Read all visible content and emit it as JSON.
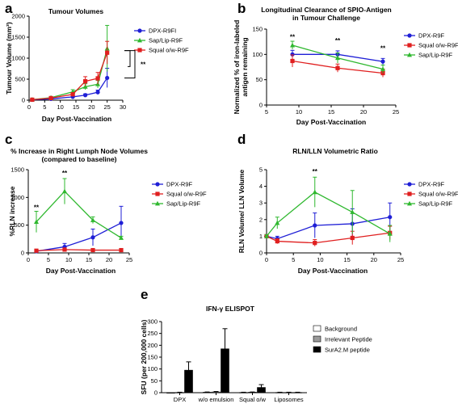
{
  "chart_data": [
    {
      "panel_label": "a",
      "type": "line",
      "title": "Tumour Volumes",
      "xlabel": "Day Post-Vaccination",
      "ylabel": "Tumour Volume (mm³)",
      "xlim": [
        0,
        30
      ],
      "ylim": [
        0,
        2000
      ],
      "xticks": [
        0,
        5,
        10,
        15,
        20,
        25,
        30
      ],
      "yticks": [
        0,
        500,
        1000,
        1500,
        2000
      ],
      "legend_position": "top-right",
      "significance": "**",
      "series": [
        {
          "name": "DPX-R9FI",
          "color": "#1f1fd6",
          "marker": "circle",
          "x": [
            1,
            7,
            14,
            18,
            22,
            25
          ],
          "y": [
            10,
            30,
            80,
            120,
            190,
            530
          ],
          "err": [
            5,
            10,
            20,
            30,
            50,
            230
          ]
        },
        {
          "name": "Sap/Lip-R9F",
          "color": "#2fb82f",
          "marker": "triangle",
          "x": [
            1,
            7,
            14,
            18,
            22,
            25
          ],
          "y": [
            15,
            60,
            200,
            320,
            380,
            1230
          ],
          "err": [
            5,
            15,
            50,
            70,
            90,
            550
          ]
        },
        {
          "name": "Squal o/w-R9F",
          "color": "#e01f1f",
          "marker": "square",
          "x": [
            1,
            7,
            14,
            18,
            22,
            25
          ],
          "y": [
            12,
            50,
            140,
            450,
            520,
            1130
          ],
          "err": [
            5,
            15,
            40,
            110,
            140,
            270
          ]
        }
      ]
    },
    {
      "panel_label": "b",
      "type": "line",
      "title": "Longitudinal Clearance of SPIO-Antigen in Tumour Challenge",
      "title_lines": [
        "Longitudinal Clearance of SPIO-Antigen",
        "in Tumour Challenge"
      ],
      "xlabel": "Day Post-Vaccination",
      "ylabel": "Normalized % of iron-labeled antigen remaining",
      "ylabel_lines": [
        "Normalized % of iron-labeled",
        "antigen remaining"
      ],
      "xlim": [
        5,
        25
      ],
      "ylim": [
        0,
        150
      ],
      "xticks": [
        5,
        10,
        15,
        20,
        25
      ],
      "yticks": [
        0,
        50,
        100,
        150
      ],
      "legend_position": "top-right",
      "annotations": [
        {
          "text": "**",
          "x": 9,
          "y": 130
        },
        {
          "text": "**",
          "x": 16,
          "y": 123
        },
        {
          "text": "**",
          "x": 23,
          "y": 108
        }
      ],
      "series": [
        {
          "name": "DPX-R9F",
          "color": "#1f1fd6",
          "marker": "circle",
          "x": [
            9,
            16,
            23
          ],
          "y": [
            100,
            100,
            86
          ],
          "err": [
            8,
            7,
            6
          ]
        },
        {
          "name": "Squal o/w-R9F",
          "color": "#e01f1f",
          "marker": "square",
          "x": [
            9,
            16,
            23
          ],
          "y": [
            87,
            73,
            63
          ],
          "err": [
            12,
            8,
            8
          ]
        },
        {
          "name": "Sap/Lip-R9F",
          "color": "#2fb82f",
          "marker": "triangle",
          "x": [
            9,
            16,
            23
          ],
          "y": [
            118,
            93,
            71
          ],
          "err": [
            8,
            10,
            8
          ]
        }
      ]
    },
    {
      "panel_label": "c",
      "type": "line",
      "title": "% Increase in Right Lumph Node Volumes (compared to baseline)",
      "title_lines": [
        "% Increase in Right Lumph Node Volumes",
        "(compared to baseline)"
      ],
      "xlabel": "Day Post-Vaccination",
      "ylabel": "%RLN increase",
      "xlim": [
        0,
        25
      ],
      "ylim": [
        0,
        1500
      ],
      "xticks": [
        0,
        5,
        10,
        15,
        20,
        25
      ],
      "yticks": [
        0,
        500,
        1000,
        1500
      ],
      "legend_position": "top-right",
      "annotations": [
        {
          "text": "**",
          "x": 2,
          "y": 780
        },
        {
          "text": "**",
          "x": 9,
          "y": 1400
        }
      ],
      "series": [
        {
          "name": "DPX-R9F",
          "color": "#1f1fd6",
          "marker": "circle",
          "x": [
            2,
            9,
            16,
            23
          ],
          "y": [
            30,
            110,
            280,
            540
          ],
          "err": [
            20,
            60,
            150,
            300
          ]
        },
        {
          "name": "Squal o/w-R9F",
          "color": "#e01f1f",
          "marker": "square",
          "x": [
            2,
            9,
            16,
            23
          ],
          "y": [
            40,
            60,
            50,
            50
          ],
          "err": [
            10,
            15,
            10,
            10
          ]
        },
        {
          "name": "Sap/Lip-R9F",
          "color": "#2fb82f",
          "marker": "triangle",
          "x": [
            2,
            9,
            16,
            23
          ],
          "y": [
            560,
            1110,
            590,
            270
          ],
          "err": [
            190,
            230,
            60,
            30
          ]
        }
      ]
    },
    {
      "panel_label": "d",
      "type": "line",
      "title": "RLN/LLN Volumetric Ratio",
      "xlabel": "Day Post-Vaccination",
      "ylabel": "RLN Volume/ LLN Volume",
      "xlim": [
        0,
        25
      ],
      "ylim": [
        0,
        5
      ],
      "xticks": [
        0,
        5,
        10,
        15,
        20,
        25
      ],
      "yticks": [
        0,
        1,
        2,
        3,
        4,
        5
      ],
      "legend_position": "top-right",
      "annotations": [
        {
          "text": "**",
          "x": 9,
          "y": 4.75
        }
      ],
      "series": [
        {
          "name": "DPX-R9F",
          "color": "#1f1fd6",
          "marker": "circle",
          "x": [
            0,
            2,
            9,
            16,
            23
          ],
          "y": [
            1.0,
            0.85,
            1.65,
            1.75,
            2.15
          ],
          "err": [
            0.1,
            0.15,
            0.75,
            0.9,
            0.85
          ]
        },
        {
          "name": "Squal o/w-R9F",
          "color": "#e01f1f",
          "marker": "square",
          "x": [
            0,
            2,
            9,
            16,
            23
          ],
          "y": [
            1.0,
            0.7,
            0.6,
            0.9,
            1.2
          ],
          "err": [
            0.1,
            0.15,
            0.2,
            0.4,
            0.4
          ]
        },
        {
          "name": "Sap/Lip-R9F",
          "color": "#2fb82f",
          "marker": "triangle",
          "x": [
            0,
            2,
            9,
            16,
            23
          ],
          "y": [
            1.0,
            1.8,
            3.65,
            2.45,
            1.15
          ],
          "err": [
            0.1,
            0.35,
            0.9,
            1.3,
            0.5
          ]
        }
      ]
    },
    {
      "panel_label": "e",
      "type": "bar",
      "title": "IFN-γ ELISPOT",
      "ylabel": "SFU (per 200,000 cells)",
      "categories": [
        "DPX",
        "w/o emulsion",
        "Squal o/w",
        "Liposomes"
      ],
      "ylim": [
        0,
        300
      ],
      "yticks": [
        0,
        50,
        100,
        150,
        200,
        250,
        300
      ],
      "legend_position": "right",
      "series": [
        {
          "name": "Background",
          "color": "#ffffff",
          "values": [
            0,
            2,
            1,
            1
          ],
          "err": [
            0,
            1,
            1,
            1
          ]
        },
        {
          "name": "Irrelevant Peptide",
          "color": "#9a9a9a",
          "values": [
            1,
            3,
            2,
            1
          ],
          "err": [
            1,
            2,
            1,
            1
          ]
        },
        {
          "name": "SurA2.M peptide",
          "color": "#000000",
          "values": [
            95,
            185,
            22,
            1
          ],
          "err": [
            35,
            85,
            12,
            1
          ]
        }
      ]
    }
  ]
}
